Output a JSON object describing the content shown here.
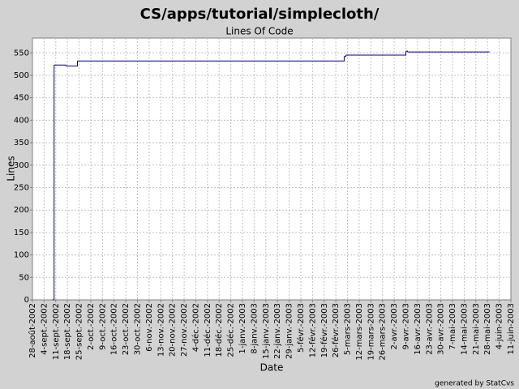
{
  "chart_data": {
    "type": "step-line",
    "title": "CS/apps/tutorial/simplecloth/",
    "subtitle": "Lines Of Code",
    "x_label": "Date",
    "y_label": "Lines",
    "footer": "generated by StatCvs",
    "grid": true,
    "x": [
      "2002-09-09",
      "2002-09-10",
      "2002-09-17",
      "2002-09-24",
      "2003-03-03",
      "2003-03-04",
      "2003-04-09",
      "2003-04-10",
      "2003-05-29"
    ],
    "series": [
      {
        "name": "Lines",
        "color": "#000080",
        "values": [
          0,
          523,
          521,
          532,
          542,
          545,
          554,
          552,
          552
        ]
      }
    ],
    "xlim": [
      "2002-08-28",
      "2003-06-11"
    ],
    "xticks": [
      {
        "value": "2002-08-28",
        "label": "28-août-2002"
      },
      {
        "value": "2002-09-04",
        "label": "4-sept.-2002"
      },
      {
        "value": "2002-09-11",
        "label": "11-sept.-2002"
      },
      {
        "value": "2002-09-18",
        "label": "18-sept.-2002"
      },
      {
        "value": "2002-09-25",
        "label": "25-sept.-2002"
      },
      {
        "value": "2002-10-02",
        "label": "2-oct.-2002"
      },
      {
        "value": "2002-10-09",
        "label": "9-oct.-2002"
      },
      {
        "value": "2002-10-16",
        "label": "16-oct.-2002"
      },
      {
        "value": "2002-10-23",
        "label": "23-oct.-2002"
      },
      {
        "value": "2002-10-30",
        "label": "30-oct.-2002"
      },
      {
        "value": "2002-11-06",
        "label": "6-nov.-2002"
      },
      {
        "value": "2002-11-13",
        "label": "13-nov.-2002"
      },
      {
        "value": "2002-11-20",
        "label": "20-nov.-2002"
      },
      {
        "value": "2002-11-27",
        "label": "27-nov.-2002"
      },
      {
        "value": "2002-12-04",
        "label": "4-déc.-2002"
      },
      {
        "value": "2002-12-11",
        "label": "11-déc.-2002"
      },
      {
        "value": "2002-12-18",
        "label": "18-déc.-2002"
      },
      {
        "value": "2002-12-25",
        "label": "25-déc.-2002"
      },
      {
        "value": "2003-01-01",
        "label": "1-janv.-2003"
      },
      {
        "value": "2003-01-08",
        "label": "8-janv.-2003"
      },
      {
        "value": "2003-01-15",
        "label": "15-janv.-2003"
      },
      {
        "value": "2003-01-22",
        "label": "22-janv.-2003"
      },
      {
        "value": "2003-01-29",
        "label": "29-janv.-2003"
      },
      {
        "value": "2003-02-05",
        "label": "5-févr.-2003"
      },
      {
        "value": "2003-02-12",
        "label": "12-févr.-2003"
      },
      {
        "value": "2003-02-19",
        "label": "19-févr.-2003"
      },
      {
        "value": "2003-02-26",
        "label": "26-févr.-2003"
      },
      {
        "value": "2003-03-05",
        "label": "5-mars-2003"
      },
      {
        "value": "2003-03-12",
        "label": "12-mars-2003"
      },
      {
        "value": "2003-03-19",
        "label": "19-mars-2003"
      },
      {
        "value": "2003-03-26",
        "label": "26-mars-2003"
      },
      {
        "value": "2003-04-02",
        "label": "2-avr.-2003"
      },
      {
        "value": "2003-04-09",
        "label": "9-avr.-2003"
      },
      {
        "value": "2003-04-16",
        "label": "16-avr.-2003"
      },
      {
        "value": "2003-04-23",
        "label": "23-avr.-2003"
      },
      {
        "value": "2003-04-30",
        "label": "30-avr.-2003"
      },
      {
        "value": "2003-05-07",
        "label": "7-mai-2003"
      },
      {
        "value": "2003-05-14",
        "label": "14-mai-2003"
      },
      {
        "value": "2003-05-21",
        "label": "21-mai-2003"
      },
      {
        "value": "2003-05-28",
        "label": "28-mai-2003"
      },
      {
        "value": "2003-06-04",
        "label": "4-juin-2003"
      },
      {
        "value": "2003-06-11",
        "label": "11-juin-2003"
      }
    ],
    "ylim": [
      0,
      583
    ],
    "yticks": [
      0,
      50,
      100,
      150,
      200,
      250,
      300,
      350,
      400,
      450,
      500,
      550
    ]
  }
}
